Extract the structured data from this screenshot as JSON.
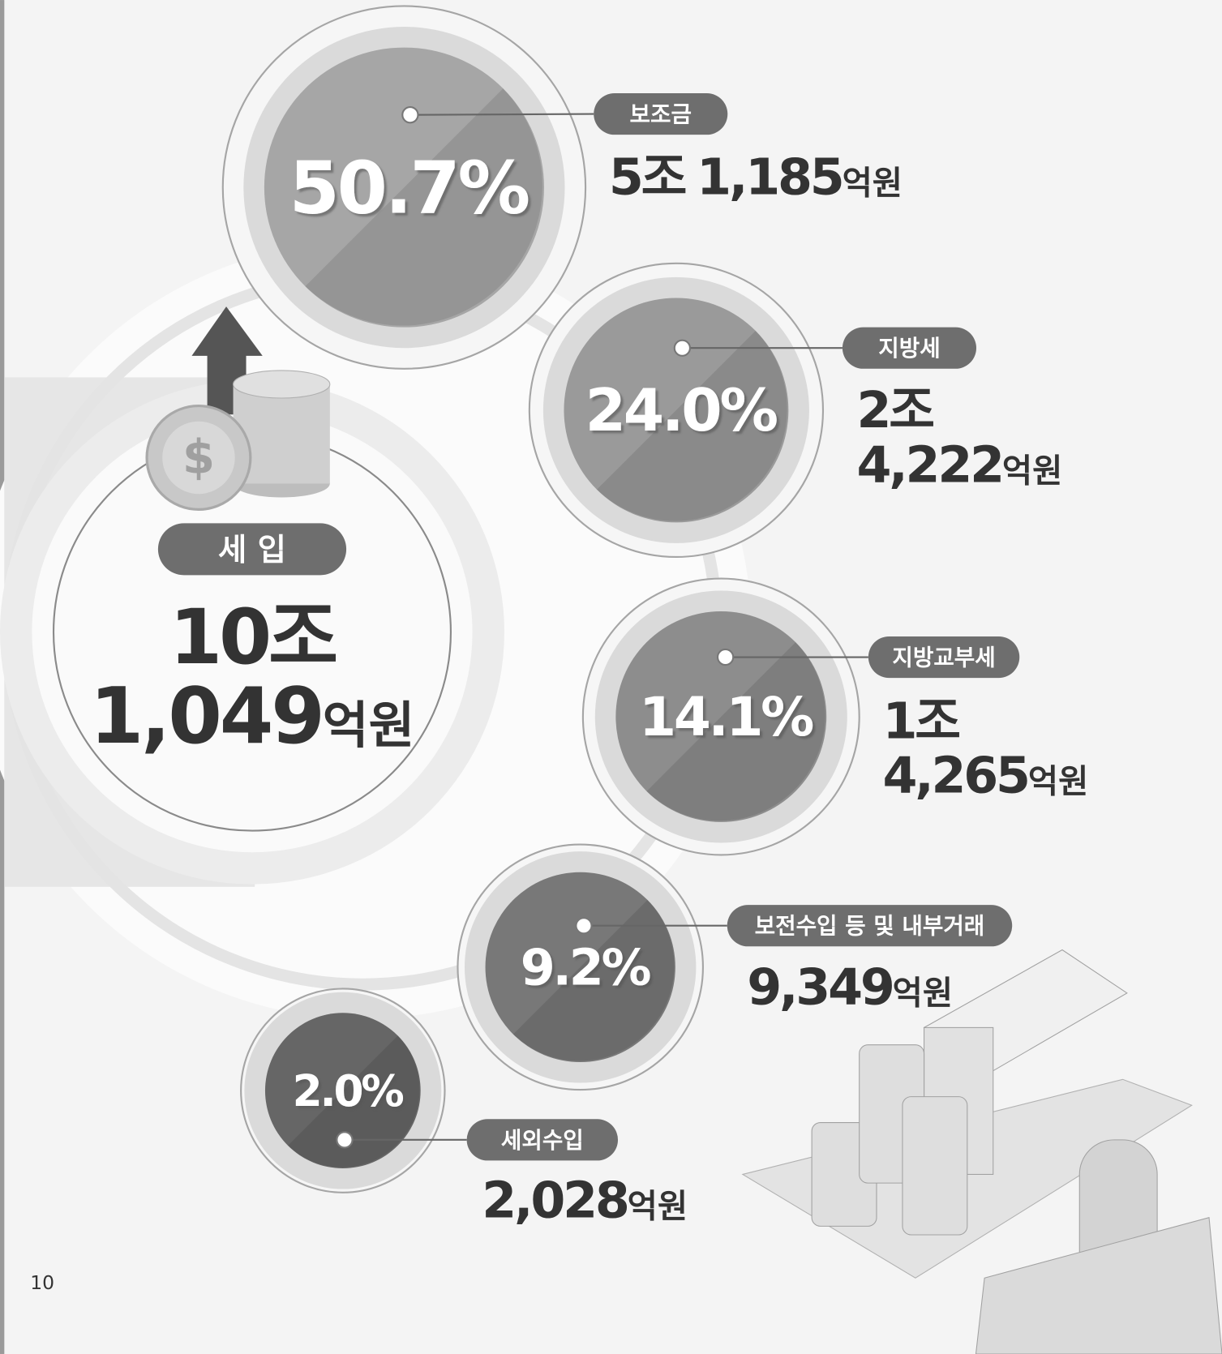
{
  "total": {
    "label": "세 입",
    "jo": "10조",
    "eok": "1,049",
    "unit": "억원"
  },
  "items": [
    {
      "name": "보조금",
      "percent": "50.7%",
      "jo": "5조",
      "eok": "1,185",
      "unit": "억원"
    },
    {
      "name": "지방세",
      "percent": "24.0%",
      "jo": "2조",
      "eok": "4,222",
      "unit": "억원"
    },
    {
      "name": "지방교부세",
      "percent": "14.1%",
      "jo": "1조",
      "eok": "4,265",
      "unit": "억원"
    },
    {
      "name": "보전수입 등 및 내부거래",
      "percent": "9.2%",
      "eok": "9,349",
      "unit": "억원"
    },
    {
      "name": "세외수입",
      "percent": "2.0%",
      "eok": "2,028",
      "unit": "억원"
    }
  ],
  "page_number": "10"
}
